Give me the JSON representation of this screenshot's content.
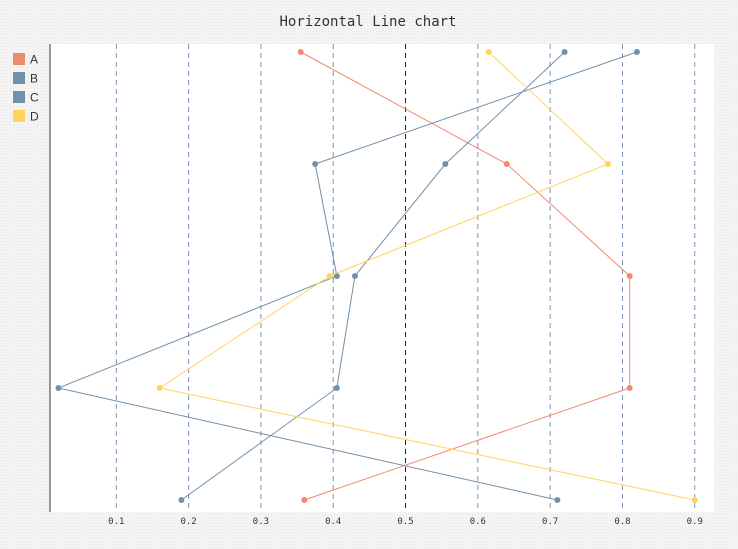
{
  "chart_data": {
    "type": "line",
    "orientation": "horizontal",
    "title": "Horizontal Line chart",
    "xlabel": "",
    "ylabel": "",
    "xlim": [
      0.0,
      0.91
    ],
    "x_ticks": [
      "0.1",
      "0.2",
      "0.3",
      "0.4",
      "0.5",
      "0.6",
      "0.7",
      "0.8",
      "0.9"
    ],
    "grid": true,
    "reference_line": 0.5,
    "legend_position": "top-left",
    "points_per_series": 5,
    "series": [
      {
        "name": "A",
        "color": "#f08a6e",
        "values": [
          0.355,
          0.64,
          0.81,
          0.81,
          0.36
        ]
      },
      {
        "name": "B",
        "color": "#7091ab",
        "values": [
          0.82,
          0.375,
          0.405,
          0.02,
          0.71
        ]
      },
      {
        "name": "C",
        "color": "#7091ab",
        "values": [
          0.72,
          0.555,
          0.43,
          0.405,
          0.19
        ]
      },
      {
        "name": "D",
        "color": "#ffd45c",
        "values": [
          0.615,
          0.78,
          0.395,
          0.16,
          0.9
        ]
      }
    ]
  }
}
